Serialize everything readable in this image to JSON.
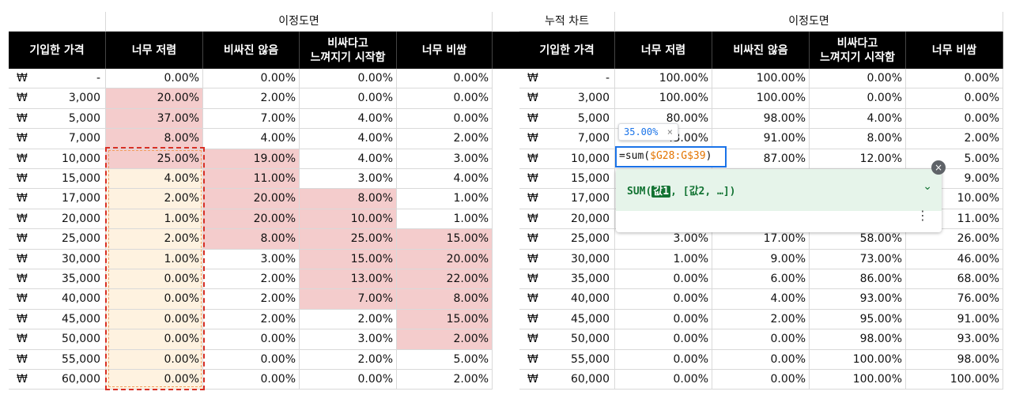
{
  "left_table": {
    "group_header": "이정도면",
    "headers": [
      "기입한 가격",
      "너무 저렴",
      "비싸진 않음",
      "비싸다고\n느껴지기 시작함",
      "너무 비쌈"
    ],
    "currency_symbol": "₩",
    "rows": [
      [
        "-",
        "0.00%",
        "0.00%",
        "0.00%",
        "0.00%"
      ],
      [
        "3,000",
        "20.00%",
        "2.00%",
        "0.00%",
        "0.00%"
      ],
      [
        "5,000",
        "37.00%",
        "7.00%",
        "4.00%",
        "0.00%"
      ],
      [
        "7,000",
        "8.00%",
        "4.00%",
        "4.00%",
        "2.00%"
      ],
      [
        "10,000",
        "25.00%",
        "19.00%",
        "4.00%",
        "3.00%"
      ],
      [
        "15,000",
        "4.00%",
        "11.00%",
        "3.00%",
        "4.00%"
      ],
      [
        "17,000",
        "2.00%",
        "20.00%",
        "8.00%",
        "1.00%"
      ],
      [
        "20,000",
        "1.00%",
        "20.00%",
        "10.00%",
        "1.00%"
      ],
      [
        "25,000",
        "2.00%",
        "8.00%",
        "25.00%",
        "15.00%"
      ],
      [
        "30,000",
        "1.00%",
        "3.00%",
        "15.00%",
        "20.00%"
      ],
      [
        "35,000",
        "0.00%",
        "2.00%",
        "13.00%",
        "22.00%"
      ],
      [
        "40,000",
        "0.00%",
        "2.00%",
        "7.00%",
        "8.00%"
      ],
      [
        "45,000",
        "0.00%",
        "2.00%",
        "2.00%",
        "15.00%"
      ],
      [
        "50,000",
        "0.00%",
        "0.00%",
        "3.00%",
        "2.00%"
      ],
      [
        "55,000",
        "0.00%",
        "0.00%",
        "2.00%",
        "5.00%"
      ],
      [
        "60,000",
        "0.00%",
        "0.00%",
        "0.00%",
        "2.00%"
      ]
    ],
    "highlight": [
      [
        0,
        0,
        0,
        0,
        0
      ],
      [
        0,
        1,
        0,
        0,
        0
      ],
      [
        0,
        1,
        0,
        0,
        0
      ],
      [
        0,
        1,
        0,
        0,
        0
      ],
      [
        0,
        1,
        1,
        0,
        0
      ],
      [
        0,
        2,
        1,
        0,
        0
      ],
      [
        0,
        2,
        1,
        1,
        0
      ],
      [
        0,
        2,
        1,
        1,
        0
      ],
      [
        0,
        2,
        1,
        1,
        1
      ],
      [
        0,
        2,
        0,
        1,
        1
      ],
      [
        0,
        2,
        0,
        1,
        1
      ],
      [
        0,
        2,
        0,
        1,
        1
      ],
      [
        0,
        2,
        0,
        0,
        1
      ],
      [
        0,
        2,
        0,
        0,
        1
      ],
      [
        0,
        2,
        0,
        0,
        0
      ],
      [
        0,
        2,
        0,
        0,
        0
      ]
    ]
  },
  "right_table": {
    "chart_label": "누적 차트",
    "group_header": "이정도면",
    "headers": [
      "기입한 가격",
      "너무 저렴",
      "비싸진 않음",
      "비싸다고\n느껴지기 시작함",
      "너무 비쌈"
    ],
    "currency_symbol": "₩",
    "rows": [
      [
        "-",
        "100.00%",
        "100.00%",
        "0.00%",
        "0.00%"
      ],
      [
        "3,000",
        "100.00%",
        "100.00%",
        "0.00%",
        "0.00%"
      ],
      [
        "5,000",
        "80.00%",
        "98.00%",
        "4.00%",
        "0.00%"
      ],
      [
        "7,000",
        "43.00%",
        "91.00%",
        "8.00%",
        "2.00%"
      ],
      [
        "10,000",
        "",
        "87.00%",
        "12.00%",
        "5.00%"
      ],
      [
        "15,000",
        "",
        "",
        "",
        "9.00%"
      ],
      [
        "17,000",
        "",
        "",
        "",
        "10.00%"
      ],
      [
        "20,000",
        "",
        "",
        "",
        "11.00%"
      ],
      [
        "25,000",
        "3.00%",
        "17.00%",
        "58.00%",
        "26.00%"
      ],
      [
        "30,000",
        "1.00%",
        "9.00%",
        "73.00%",
        "46.00%"
      ],
      [
        "35,000",
        "0.00%",
        "6.00%",
        "86.00%",
        "68.00%"
      ],
      [
        "40,000",
        "0.00%",
        "4.00%",
        "93.00%",
        "76.00%"
      ],
      [
        "45,000",
        "0.00%",
        "2.00%",
        "95.00%",
        "91.00%"
      ],
      [
        "50,000",
        "0.00%",
        "0.00%",
        "98.00%",
        "93.00%"
      ],
      [
        "55,000",
        "0.00%",
        "0.00%",
        "100.00%",
        "98.00%"
      ],
      [
        "60,000",
        "0.00%",
        "0.00%",
        "100.00%",
        "100.00%"
      ]
    ]
  },
  "formula_editor": {
    "prefix": "=sum(",
    "ref1": "$G28:G",
    "ref2": "$39",
    "suffix": ")",
    "preview_value": "35.00%",
    "preview_close": "×",
    "help_function": "SUM(",
    "help_arg1": "값1",
    "help_rest": ", [값2, …])",
    "help_toggle": "⌄",
    "help_menu": "⋮",
    "close_symbol": "×"
  },
  "colors": {
    "header_bg": "#000000",
    "highlight_pink": "#f4cccc",
    "highlight_cream": "#fef2e0",
    "selection_dash": "#d93025",
    "edit_border": "#1a73e8",
    "function_green": "#137333",
    "reference_orange": "#e37400"
  }
}
